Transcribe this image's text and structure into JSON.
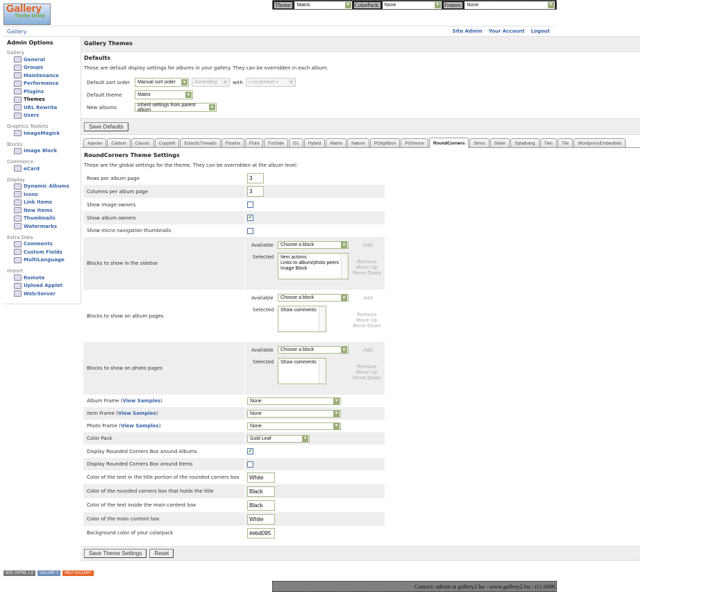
{
  "topbar": {
    "theme_label": "Theme:",
    "theme": "Matrix",
    "colorpack_label": "ColorPack:",
    "colorpack": "None",
    "frames_label": "Frames:",
    "frames": "None"
  },
  "logo": {
    "text": "Gallery",
    "sub": "Theme Demo"
  },
  "header": {
    "title": "Gallery",
    "links": [
      "Site Admin",
      "Your Account",
      "Logout"
    ]
  },
  "sidebar": {
    "title": "Admin Options",
    "groups": [
      {
        "name": "Gallery",
        "items": [
          "General",
          "Groups",
          "Maintenance",
          "Performance",
          "Plugins",
          "Themes",
          "URL Rewrite",
          "Users"
        ]
      },
      {
        "name": "Graphics Toolkits",
        "items": [
          "ImageMagick"
        ]
      },
      {
        "name": "Blocks",
        "items": [
          "Image Block"
        ]
      },
      {
        "name": "Commerce",
        "items": [
          "eCard"
        ]
      },
      {
        "name": "Display",
        "items": [
          "Dynamic Albums",
          "Icons",
          "Link Items",
          "New Items",
          "Thumbnails",
          "Watermarks"
        ]
      },
      {
        "name": "Extra Data",
        "items": [
          "Comments",
          "Custom Fields",
          "MultiLanguage"
        ]
      },
      {
        "name": "Import",
        "items": [
          "Remote",
          "Upload Applet",
          "Web/Server"
        ]
      }
    ],
    "current": "Themes"
  },
  "main": {
    "title": "Gallery Themes",
    "defaults": {
      "heading": "Defaults",
      "desc": "These are default display settings for albums in your gallery. They can be overridden in each album.",
      "sort_label": "Default sort order",
      "sort": "Manual sort order",
      "direction": "Ascending",
      "with": "with",
      "presort": "« no presort »",
      "theme_label": "Default theme",
      "theme": "Matrix",
      "new_label": "New albums",
      "new": "Inherit settings from parent album",
      "save": "Save Defaults"
    },
    "tabs": [
      "Ajaxian",
      "Carbon",
      "Classic",
      "Copyleft",
      "EclecticThreads",
      "Floatrix",
      "Fluid",
      "ForSale",
      "G1",
      "Hybrid",
      "Matrix",
      "Nature",
      "PGlightbox",
      "PGtheme",
      "RoundCorners",
      "Sirius",
      "Slider",
      "Splatbang",
      "Tien",
      "Tile",
      "WordpressEmbedded"
    ],
    "active_tab": "RoundCorners",
    "settings_title": "RoundCorners Theme Settings",
    "settings_desc": "These are the global settings for the theme. They can be overridden at the album level.",
    "rows": {
      "rows_per_page": {
        "label": "Rows per album page",
        "value": "3"
      },
      "cols_per_page": {
        "label": "Columns per album page",
        "value": "3"
      },
      "image_owners": {
        "label": "Show image owners",
        "checked": false
      },
      "album_owners": {
        "label": "Show album owners",
        "checked": true
      },
      "micro_nav": {
        "label": "Show micro navigation thumbnails",
        "checked": false
      },
      "sidebar_blocks": {
        "label": "Blocks to show in the sidebar",
        "selected": [
          "Item actions",
          "Links to album/photo peers",
          "Image Block"
        ]
      },
      "album_blocks": {
        "label": "Blocks to show on album pages",
        "selected": [
          "Show comments"
        ]
      },
      "photo_blocks": {
        "label": "Blocks to show on photo pages",
        "selected": [
          "Show comments"
        ]
      },
      "album_frame": {
        "label": "Album Frame",
        "value": "None"
      },
      "item_frame": {
        "label": "Item Frame",
        "value": "None"
      },
      "photo_frame": {
        "label": "Photo Frame",
        "value": "None"
      },
      "color_pack": {
        "label": "Color Pack",
        "value": "Gold Leaf"
      },
      "rc_albums": {
        "label": "Display Rounded Corners Box around Albums",
        "checked": true
      },
      "rc_items": {
        "label": "Display Rounded Corners Box around Items",
        "checked": false
      },
      "title_text_color": {
        "label": "Color of the text in the title portion of the rounded corners box",
        "value": "White"
      },
      "title_box_color": {
        "label": "Color of the rounded corners box that holds the title",
        "value": "Black"
      },
      "main_text_color": {
        "label": "Color of the text inside the main content box",
        "value": "Black"
      },
      "main_box_color": {
        "label": "Color of the main content box",
        "value": "White"
      },
      "bg_color": {
        "label": "Background color of your colarpack",
        "value": "#ebd095"
      }
    },
    "block_ui": {
      "available": "Available",
      "choose": "Choose a block",
      "selected": "Selected",
      "add": "Add",
      "remove": "Remove",
      "up": "Move Up",
      "down": "Move Down"
    },
    "view_samples": "View Samples",
    "save": "Save Theme Settings",
    "reset": "Reset"
  },
  "badges": [
    "W3C XHTML 1.0",
    "GALLERY 2",
    "HELP GALLERY!"
  ],
  "footer": "Contact: admin at gallery2.hu - www.gallery2.hu - (c) 2006"
}
